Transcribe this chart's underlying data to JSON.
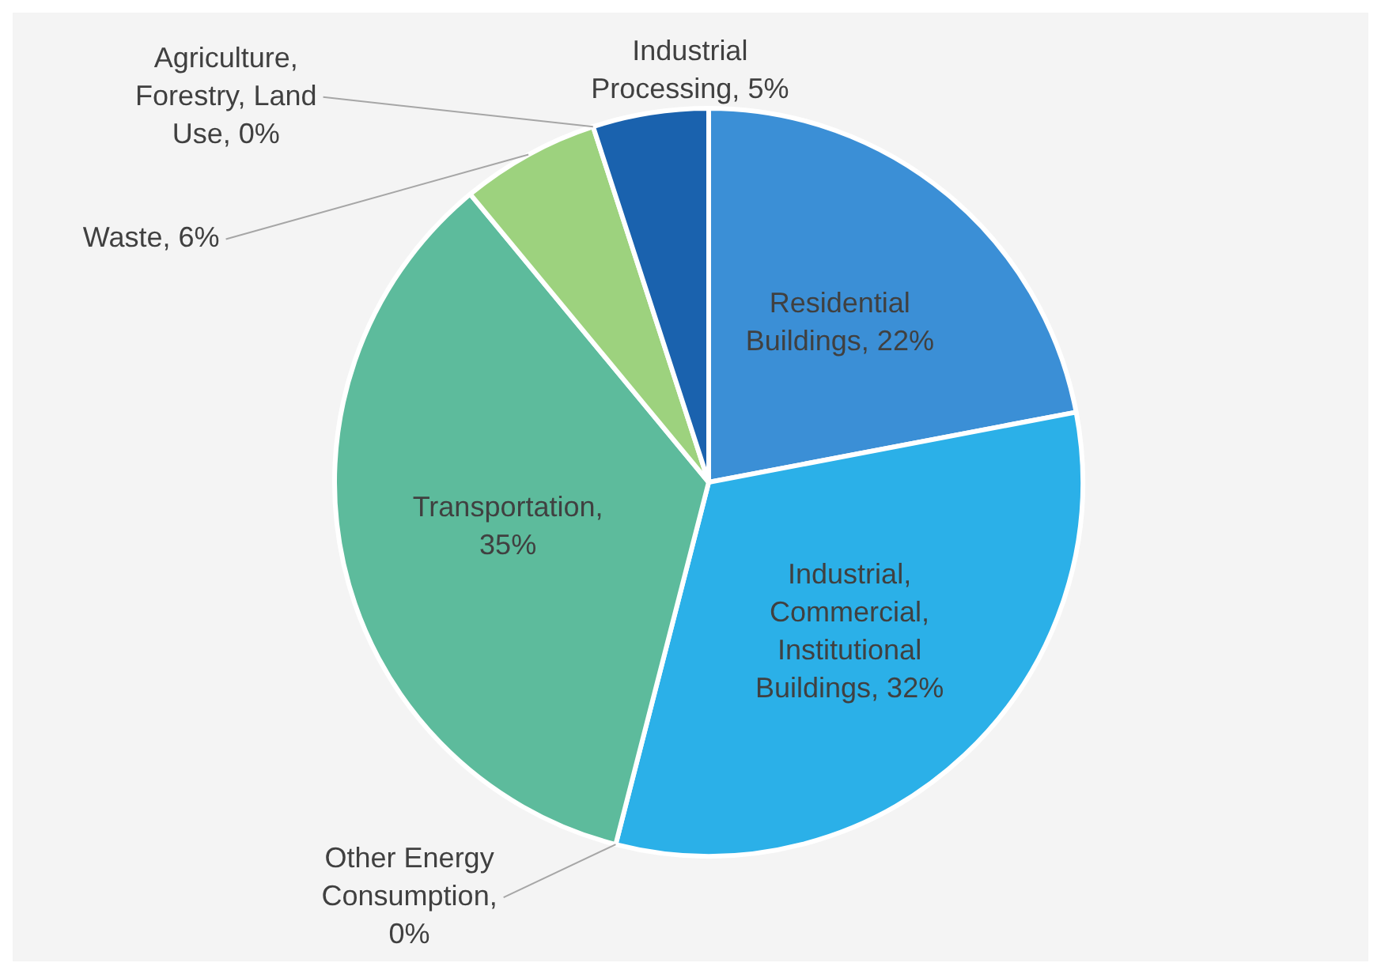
{
  "chart_data": {
    "type": "pie",
    "categories": [
      "Residential Buildings, 22%",
      "Industrial, Commercial, Institutional Buildings, 32%",
      "Other Energy Consumption, 0%",
      "Transportation, 35%",
      "Waste, 6%",
      "Agriculture, Forestry, Land Use, 0%",
      "Industrial Processing, 5%"
    ],
    "values": [
      22,
      32,
      0,
      35,
      6,
      0,
      5
    ],
    "colors": [
      "#3b8fd6",
      "#2bb0e8",
      "#cfe6ee",
      "#5dbb9c",
      "#9dd27e",
      "#b9dfa0",
      "#1a62ae"
    ]
  }
}
